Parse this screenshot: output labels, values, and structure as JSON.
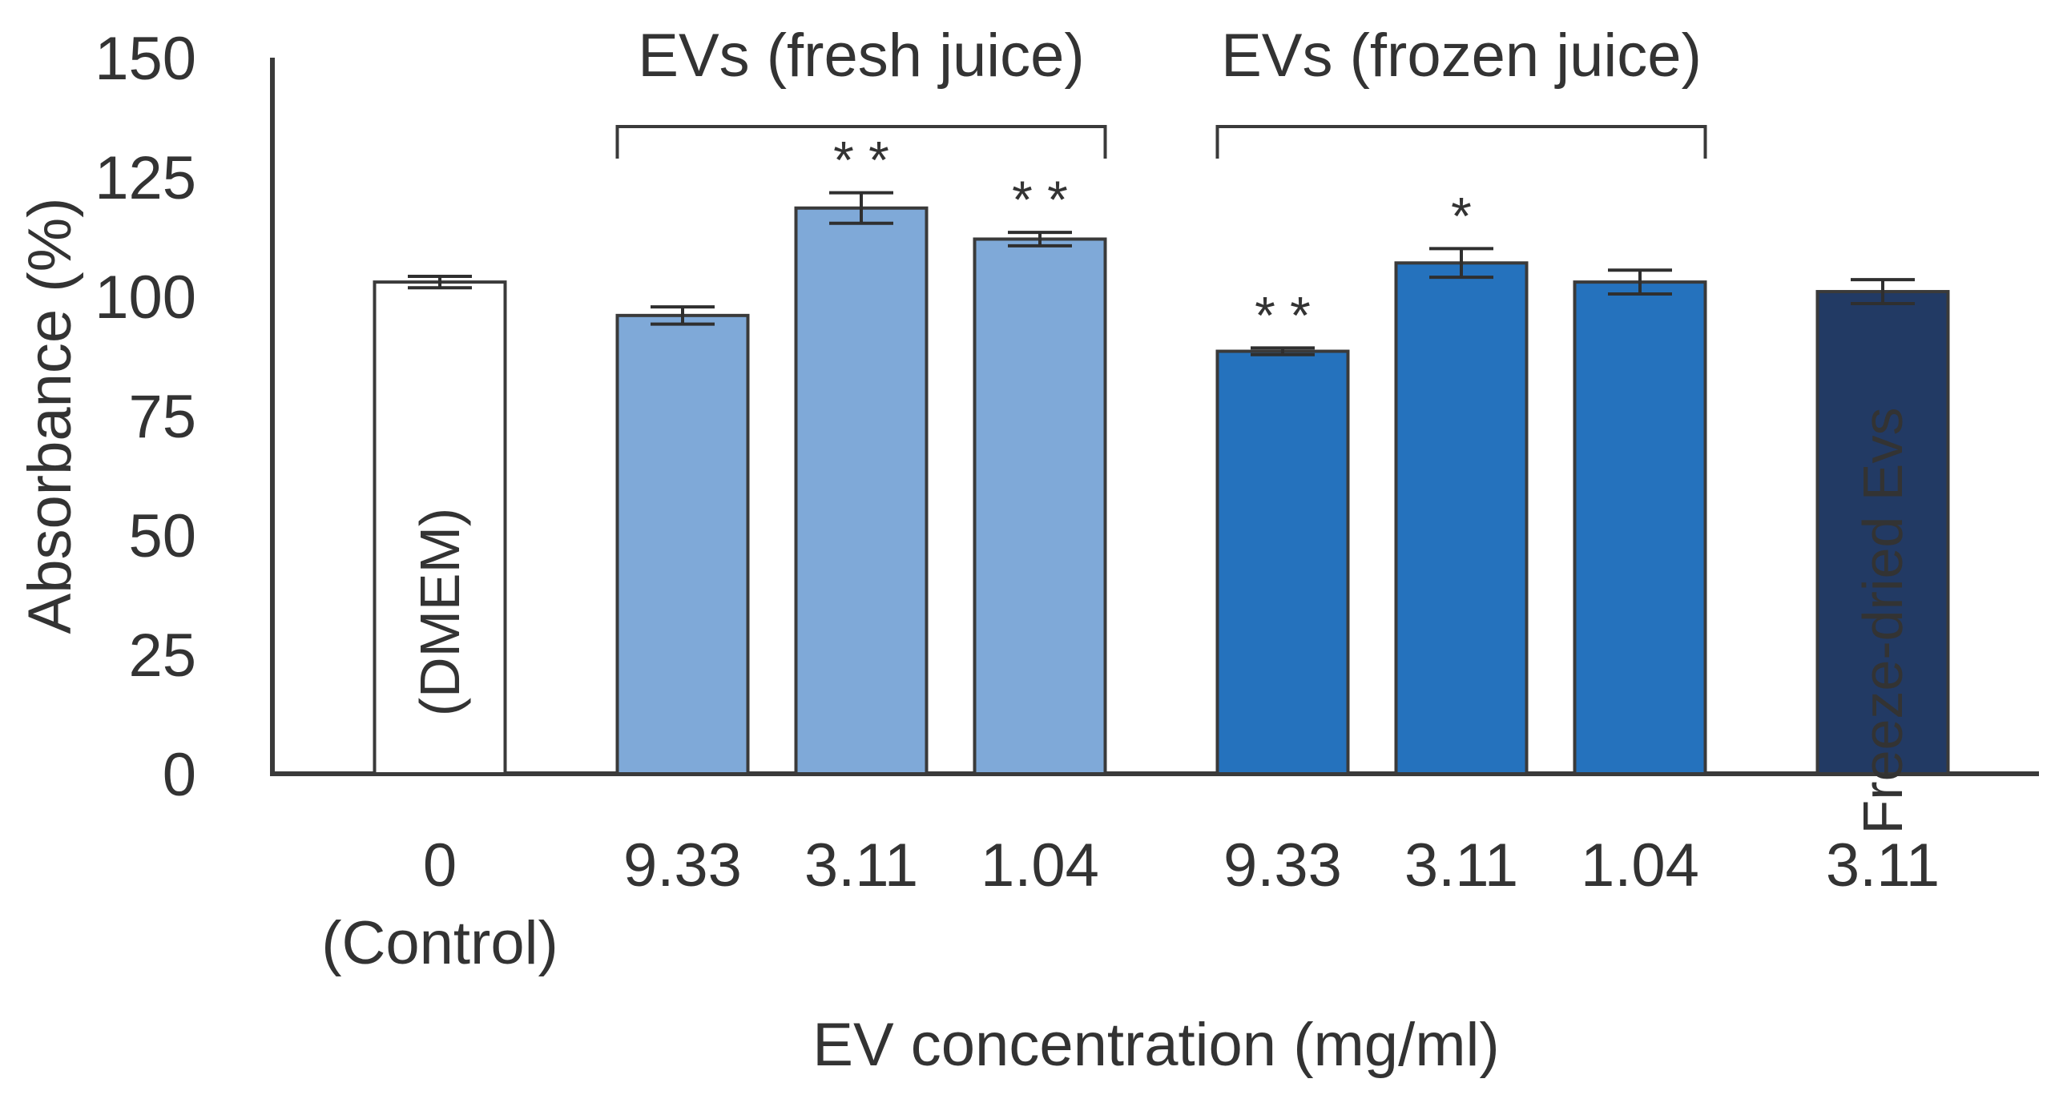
{
  "chart_data": {
    "type": "bar",
    "title": "",
    "ylabel": "Absorbance (%)",
    "xlabel": "EV concentration (mg/ml)",
    "ylim": [
      0,
      150
    ],
    "yticks": [
      0,
      25,
      50,
      75,
      100,
      125,
      150
    ],
    "ytick_labels": [
      "0",
      "25",
      "50",
      "75",
      "100",
      "125",
      "150"
    ],
    "bars": [
      {
        "id": "control",
        "category": "0",
        "sublabel": "(Control)",
        "value": 103,
        "error": 1.2,
        "color": "#ffffff",
        "inner_label": "(DMEM)",
        "inner_label_color": "#333333",
        "significance": ""
      },
      {
        "id": "fresh-9-33",
        "category": "9.33",
        "value": 96,
        "error": 1.8,
        "color": "#7fa9d8",
        "inner_label": "",
        "significance": ""
      },
      {
        "id": "fresh-3-11",
        "category": "3.11",
        "value": 118.5,
        "error": 3.2,
        "color": "#7fa9d8",
        "inner_label": "",
        "significance": "**"
      },
      {
        "id": "fresh-1-04",
        "category": "1.04",
        "value": 112,
        "error": 1.4,
        "color": "#7fa9d8",
        "inner_label": "",
        "significance": "**"
      },
      {
        "id": "frozen-9-33",
        "category": "9.33",
        "value": 88.5,
        "error": 0.7,
        "color": "#2572bd",
        "inner_label": "",
        "significance": "**"
      },
      {
        "id": "frozen-3-11",
        "category": "3.11",
        "value": 107,
        "error": 3.0,
        "color": "#2572bd",
        "inner_label": "",
        "significance": "*"
      },
      {
        "id": "frozen-1-04",
        "category": "1.04",
        "value": 103,
        "error": 2.5,
        "color": "#2572bd",
        "inner_label": "",
        "significance": ""
      },
      {
        "id": "freeze-dried-3-11",
        "category": "3.11",
        "value": 101,
        "error": 2.5,
        "color": "#223a64",
        "inner_label": "Freeze-dried Evs",
        "inner_label_color": "#ffffff",
        "significance": ""
      }
    ],
    "groups": [
      {
        "label": "EVs (fresh juice)",
        "bar_ids": [
          "fresh-9-33",
          "fresh-3-11",
          "fresh-1-04"
        ]
      },
      {
        "label": "EVs (frozen juice)",
        "bar_ids": [
          "frozen-9-33",
          "frozen-3-11",
          "frozen-1-04"
        ]
      }
    ],
    "grid": false,
    "legend": "none"
  }
}
